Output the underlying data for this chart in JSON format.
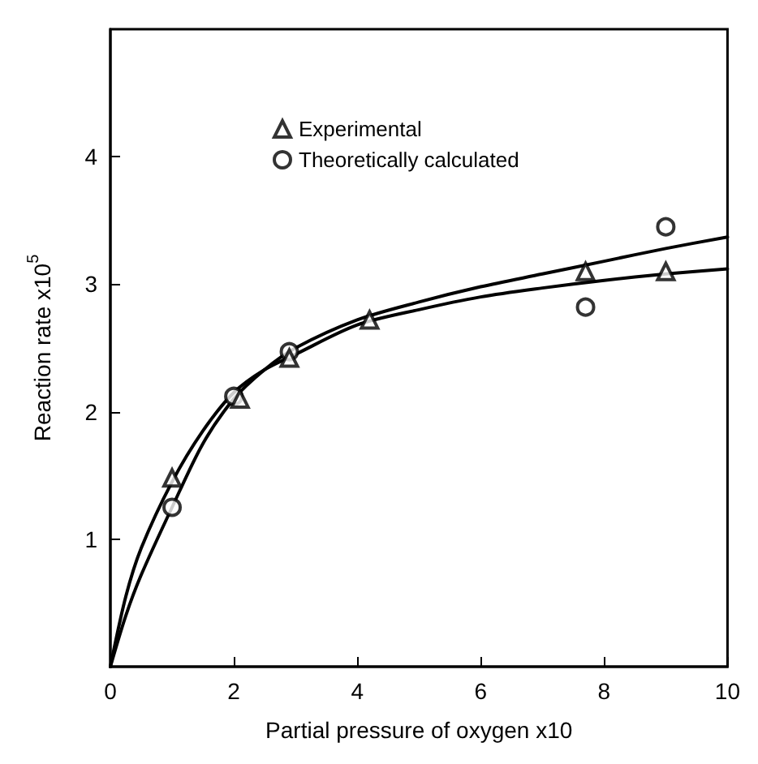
{
  "chart_data": {
    "type": "scatter",
    "xlabel": "Partial pressure of oxygen x10",
    "ylabel": "Reaction rate x10$^{5}$",
    "xlim": [
      0,
      10
    ],
    "xticks": [
      0,
      2,
      4,
      6,
      8,
      10
    ],
    "ylim": [
      0,
      5
    ],
    "yticks": [
      1,
      2,
      3,
      4
    ],
    "grid": false,
    "legend": "top",
    "series": [
      {
        "name": "Experimental",
        "color": "#000000",
        "marker": "triangle",
        "x": [
          1,
          2.1,
          2.9,
          4.2,
          7.7,
          9
        ],
        "values": [
          1.48,
          2.1,
          2.42,
          2.72,
          3.1,
          3.1
        ]
      },
      {
        "name": "Theoretically calculated",
        "color": "#000000",
        "marker": "circle",
        "x": [
          1,
          2,
          2.9,
          7.7,
          9
        ],
        "values": [
          1.25,
          2.12,
          2.47,
          2.82,
          3.45
        ]
      },
      {
        "type": "line",
        "color": "#000000",
        "marker": "none",
        "line_style": "solid",
        "x": [
          0,
          0.25,
          0.5,
          1,
          1.5,
          2,
          2.5,
          3,
          4,
          5,
          6,
          7,
          8,
          9,
          10
        ],
        "values": [
          0,
          0.55,
          0.93,
          1.45,
          1.85,
          2.15,
          2.33,
          2.45,
          2.68,
          2.8,
          2.9,
          2.97,
          3.03,
          3.08,
          3.12
        ]
      },
      {
        "type": "line",
        "color": "#000000",
        "marker": "none",
        "line_style": "solid",
        "x": [
          0,
          0.25,
          0.5,
          1,
          1.5,
          2,
          2.5,
          3,
          4,
          5,
          6,
          7,
          8,
          9,
          10
        ],
        "values": [
          0,
          0.4,
          0.72,
          1.25,
          1.75,
          2.1,
          2.33,
          2.5,
          2.72,
          2.86,
          2.98,
          3.08,
          3.18,
          3.28,
          3.37
        ]
      }
    ]
  }
}
